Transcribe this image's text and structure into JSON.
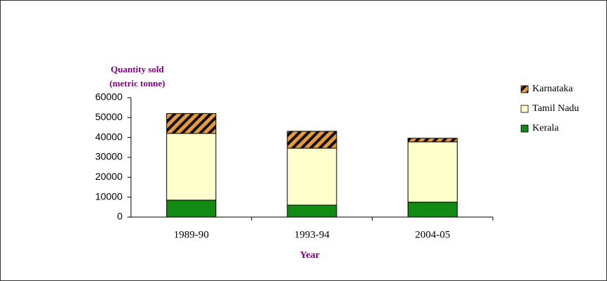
{
  "chart_data": {
    "type": "stacked_bar",
    "ylabel": [
      "Quantity sold",
      "(metric tonne)"
    ],
    "xlabel": "Year",
    "categories": [
      "1989-90",
      "1993-94",
      "2004-05"
    ],
    "series": [
      {
        "name": "Kerala",
        "color": "#138a13",
        "values": [
          8500,
          6000,
          7500
        ]
      },
      {
        "name": "Tamil Nadu",
        "color": "#ffffcc",
        "values": [
          33500,
          28600,
          30300
        ]
      },
      {
        "name": "Karnataka",
        "color": "#e89a3c",
        "pattern": "hatch",
        "values": [
          10000,
          8500,
          1800
        ]
      }
    ],
    "ylim": [
      0,
      60000
    ],
    "yticks": [
      0,
      10000,
      20000,
      30000,
      40000,
      50000,
      60000
    ],
    "legend": "right"
  }
}
